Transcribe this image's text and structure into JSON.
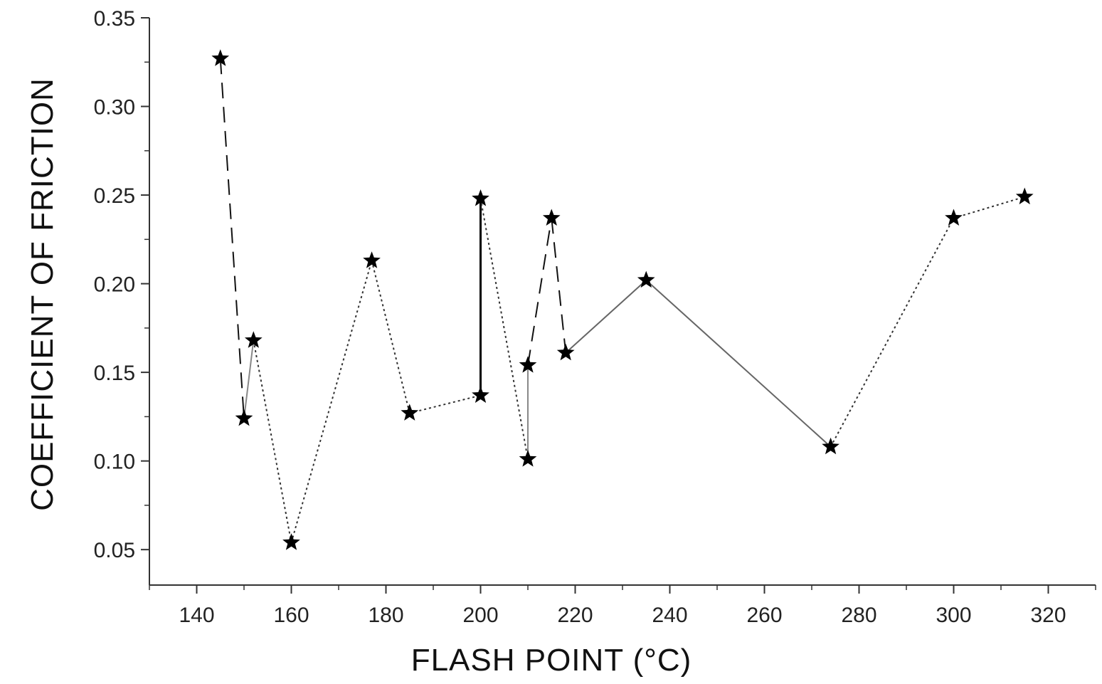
{
  "chart_data": {
    "type": "line",
    "title": "",
    "xlabel": "FLASH POINT (°C)",
    "ylabel": "COEFFICIENT OF FRICTION",
    "xlim": [
      130,
      330
    ],
    "ylim": [
      0.03,
      0.35
    ],
    "x_ticks": [
      140,
      160,
      180,
      200,
      220,
      240,
      260,
      280,
      300,
      320
    ],
    "y_ticks": [
      0.05,
      0.1,
      0.15,
      0.2,
      0.25,
      0.3,
      0.35
    ],
    "x_tick_labels": [
      "140",
      "160",
      "180",
      "200",
      "220",
      "240",
      "260",
      "280",
      "300",
      "320"
    ],
    "y_tick_labels": [
      "0.05",
      "0.10",
      "0.15",
      "0.20",
      "0.25",
      "0.30",
      "0.35"
    ],
    "grid": false,
    "legend": "none",
    "marker": "star",
    "marker_color": "#000000",
    "points": [
      {
        "x": 145,
        "y": 0.327
      },
      {
        "x": 150,
        "y": 0.124
      },
      {
        "x": 152,
        "y": 0.168
      },
      {
        "x": 160,
        "y": 0.054
      },
      {
        "x": 177,
        "y": 0.213
      },
      {
        "x": 185,
        "y": 0.127
      },
      {
        "x": 200,
        "y": 0.137
      },
      {
        "x": 200,
        "y": 0.248
      },
      {
        "x": 210,
        "y": 0.101
      },
      {
        "x": 210,
        "y": 0.154
      },
      {
        "x": 215,
        "y": 0.237
      },
      {
        "x": 218,
        "y": 0.161
      },
      {
        "x": 235,
        "y": 0.202
      },
      {
        "x": 274,
        "y": 0.108
      },
      {
        "x": 300,
        "y": 0.237
      },
      {
        "x": 315,
        "y": 0.249
      }
    ],
    "segments": [
      {
        "from": 0,
        "to": 1,
        "style": "dashed",
        "color": "#111111"
      },
      {
        "from": 1,
        "to": 2,
        "style": "solid",
        "color": "#888888"
      },
      {
        "from": 2,
        "to": 3,
        "style": "dotted",
        "color": "#333333"
      },
      {
        "from": 3,
        "to": 4,
        "style": "dotted",
        "color": "#333333"
      },
      {
        "from": 4,
        "to": 5,
        "style": "dotted",
        "color": "#333333"
      },
      {
        "from": 5,
        "to": 6,
        "style": "dotted",
        "color": "#333333"
      },
      {
        "from": 6,
        "to": 7,
        "style": "solid",
        "color": "#000000"
      },
      {
        "from": 7,
        "to": 8,
        "style": "dotted",
        "color": "#333333"
      },
      {
        "from": 8,
        "to": 9,
        "style": "solid",
        "color": "#888888"
      },
      {
        "from": 9,
        "to": 10,
        "style": "dashed",
        "color": "#111111"
      },
      {
        "from": 10,
        "to": 11,
        "style": "dashed",
        "color": "#111111"
      },
      {
        "from": 11,
        "to": 12,
        "style": "solid",
        "color": "#666666"
      },
      {
        "from": 12,
        "to": 13,
        "style": "solid",
        "color": "#666666"
      },
      {
        "from": 13,
        "to": 14,
        "style": "dotted",
        "color": "#333333"
      },
      {
        "from": 14,
        "to": 15,
        "style": "dotted",
        "color": "#333333"
      }
    ]
  }
}
